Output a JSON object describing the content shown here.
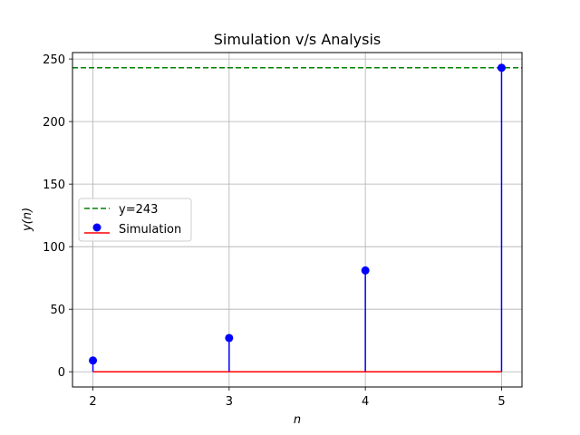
{
  "chart_data": {
    "type": "stem",
    "title": "Simulation v/s Analysis",
    "xlabel": "n",
    "ylabel": "y(n)",
    "xlim": [
      1.85,
      5.15
    ],
    "ylim": [
      -12.15,
      255.15
    ],
    "x_ticks": [
      2,
      3,
      4,
      5
    ],
    "y_ticks": [
      0,
      50,
      100,
      150,
      200,
      250
    ],
    "grid": true,
    "legend_position": "center-left",
    "series": [
      {
        "name": "Simulation",
        "kind": "stem",
        "x": [
          2,
          3,
          4,
          5
        ],
        "y": [
          9,
          27,
          81,
          243
        ],
        "marker_color": "#0000ff",
        "stem_color": "#0000ff",
        "baseline_color": "#ff0000"
      },
      {
        "name": "y=243",
        "kind": "hline",
        "y": 243,
        "color": "#008000",
        "linestyle": "dashed"
      }
    ]
  }
}
